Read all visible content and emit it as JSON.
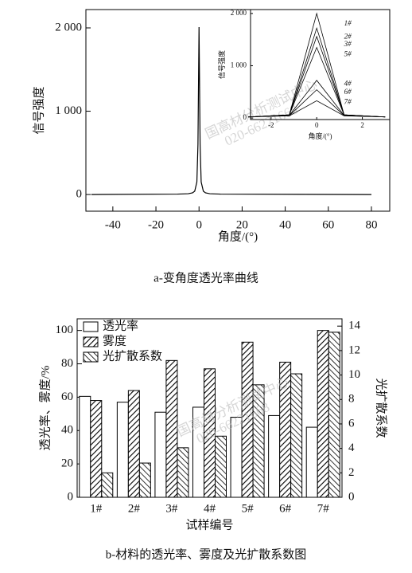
{
  "chart_data": [
    {
      "type": "line",
      "caption": "a-变角度透光率曲线",
      "x_label": "角度/(°)",
      "y_label": "信号强度",
      "watermark": [
        "国高材分析测试中心",
        "020-66221668"
      ],
      "x": [
        -50,
        -10,
        -5,
        -3,
        -2,
        -1,
        -0.5,
        0,
        0.5,
        1,
        2,
        3,
        5,
        10,
        80
      ],
      "series": [
        {
          "color": "#000000",
          "values": [
            0,
            5,
            10,
            20,
            40,
            150,
            600,
            2010,
            600,
            150,
            40,
            20,
            10,
            5,
            0
          ]
        }
      ],
      "xlim": [
        -52.5,
        88.5
      ],
      "ylim": [
        -200,
        2220
      ],
      "xticks": [
        -40,
        -20,
        0,
        20,
        40,
        60,
        80
      ],
      "yticks": [
        0,
        {
          "value": 1000,
          "label": "1 000"
        },
        {
          "value": 2000,
          "label": "2 000"
        }
      ]
    },
    {
      "type": "line",
      "x_label": "角度/(°)",
      "y_label": "信号强度",
      "x": [
        -3,
        -1.2,
        0,
        1.2,
        3
      ],
      "series": [
        {
          "name": "1#",
          "color": "#000000",
          "values": [
            20,
            60,
            2000,
            60,
            20
          ]
        },
        {
          "name": "2#",
          "color": "#000000",
          "values": [
            20,
            60,
            1720,
            60,
            20
          ]
        },
        {
          "name": "3#",
          "color": "#000000",
          "values": [
            20,
            60,
            1560,
            60,
            20
          ]
        },
        {
          "name": "5#",
          "color": "#000000",
          "values": [
            20,
            60,
            1350,
            60,
            20
          ]
        },
        {
          "name": "4#",
          "color": "#000000",
          "values": [
            20,
            50,
            720,
            50,
            20
          ]
        },
        {
          "name": "6#",
          "color": "#000000",
          "values": [
            20,
            45,
            540,
            45,
            20
          ]
        },
        {
          "name": "7#",
          "color": "#000000",
          "values": [
            20,
            40,
            330,
            40,
            20
          ]
        }
      ],
      "xlim": [
        -2.9,
        3.2
      ],
      "ylim": [
        -30,
        2075
      ],
      "xticks": [
        -2,
        0,
        2
      ],
      "yticks": [
        0,
        {
          "value": 1000,
          "label": "1 000"
        },
        {
          "value": 2000,
          "label": "2 000"
        }
      ]
    },
    {
      "type": "bar",
      "caption": "b-材料的透光率、雾度及光扩散系数图",
      "x_label": "试样编号",
      "y_label": "透光率、雾度/%",
      "y2_label": "光扩散系数",
      "watermark": [
        "国高材分析测试中心",
        "020-66221668"
      ],
      "categories": [
        "1#",
        "2#",
        "3#",
        "4#",
        "5#",
        "6#",
        "7#"
      ],
      "series": [
        {
          "name": "透光率",
          "color": "#ffffff",
          "pattern": "none",
          "values": [
            60.5,
            57,
            51,
            54,
            48,
            49,
            42
          ]
        },
        {
          "name": "雾度",
          "color": "#ffffff",
          "pattern": "diagonal",
          "values": [
            58,
            64,
            82,
            77,
            93,
            81,
            100
          ]
        },
        {
          "name": "光扩散系数",
          "color": "#ffffff",
          "pattern": "back-diagonal",
          "axis": "y2",
          "values": [
            2.0,
            2.8,
            4.05,
            5.0,
            9.2,
            10.1,
            13.5
          ]
        }
      ],
      "ylim": [
        0,
        107
      ],
      "yticks": [
        0,
        20,
        40,
        60,
        80,
        100
      ],
      "y2lim": [
        0,
        14.6
      ],
      "y2ticks": [
        0,
        2,
        4,
        6,
        8,
        10,
        12,
        14
      ],
      "legend": "upper-left"
    }
  ]
}
